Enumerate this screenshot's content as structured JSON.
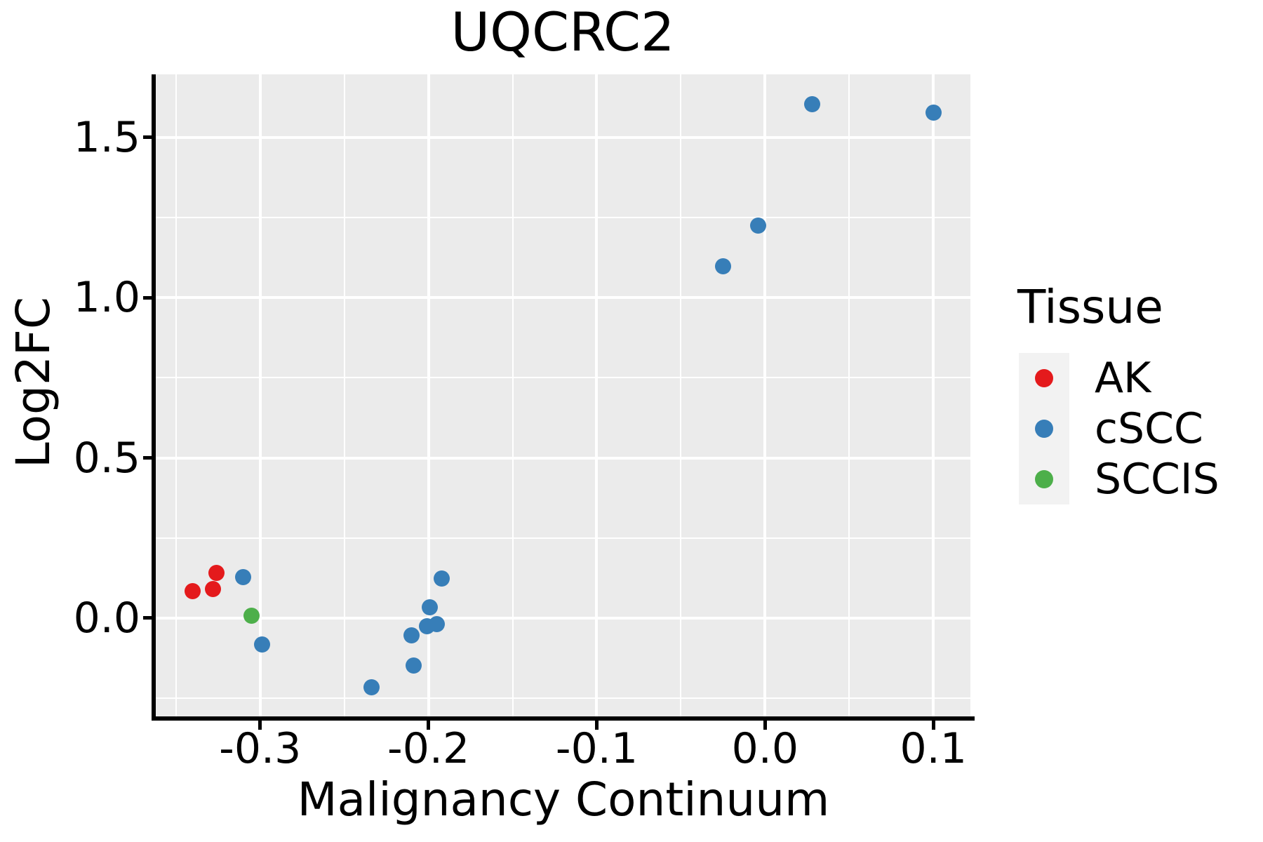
{
  "chart_data": {
    "type": "scatter",
    "title": "UQCRC2",
    "xlabel": "Malignancy Continuum",
    "ylabel": "Log2FC",
    "xlim": [
      -0.362,
      0.122
    ],
    "ylim": [
      -0.307,
      1.697
    ],
    "x_ticks": [
      -0.3,
      -0.2,
      -0.1,
      0.0,
      0.1
    ],
    "x_tick_labels": [
      "-0.3",
      "-0.2",
      "-0.1",
      "0.0",
      "0.1"
    ],
    "y_ticks": [
      0.0,
      0.5,
      1.0,
      1.5
    ],
    "y_tick_labels": [
      "0.0",
      "0.5",
      "1.0",
      "1.5"
    ],
    "x_minor_ticks": [
      -0.35,
      -0.25,
      -0.15,
      -0.05,
      0.05
    ],
    "y_minor_ticks": [
      -0.25,
      0.25,
      0.75,
      1.25
    ],
    "grid": "white major and minor gridlines on gray panel",
    "legend_position": "right",
    "panel_background": "#EBEBEB",
    "gridline_color": "#FFFFFF",
    "axis_color": "#000000",
    "series": [
      {
        "name": "AK",
        "color": "#E41A1C",
        "points": [
          [
            -0.34,
            0.085
          ],
          [
            -0.328,
            0.09
          ],
          [
            -0.326,
            0.14
          ]
        ]
      },
      {
        "name": "cSCC",
        "color": "#377EB8",
        "points": [
          [
            -0.31,
            0.127
          ],
          [
            -0.299,
            -0.083
          ],
          [
            -0.234,
            -0.217
          ],
          [
            -0.209,
            -0.148
          ],
          [
            -0.21,
            -0.053
          ],
          [
            -0.201,
            -0.026
          ],
          [
            -0.195,
            -0.018
          ],
          [
            -0.199,
            0.033
          ],
          [
            -0.192,
            0.123
          ],
          [
            -0.025,
            1.099
          ],
          [
            -0.004,
            1.226
          ],
          [
            0.028,
            1.603
          ],
          [
            0.1,
            1.577
          ]
        ]
      },
      {
        "name": "SCCIS",
        "color": "#4DAF4A",
        "points": [
          [
            -0.305,
            0.007
          ]
        ]
      }
    ]
  },
  "legend": {
    "title": "Tissue",
    "items": [
      {
        "label": "AK",
        "color": "#E41A1C"
      },
      {
        "label": "cSCC",
        "color": "#377EB8"
      },
      {
        "label": "SCCIS",
        "color": "#4DAF4A"
      }
    ]
  }
}
